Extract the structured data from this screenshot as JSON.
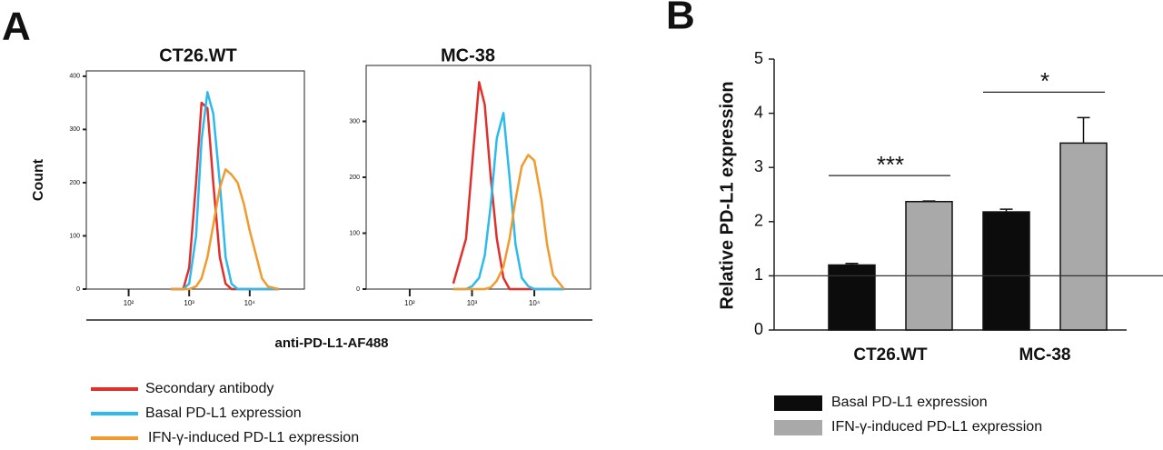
{
  "chart_data": [
    {
      "type": "line",
      "panel": "A",
      "title": "CT26.WT",
      "xlabel": "anti-PD-L1-AF488",
      "ylabel": "Count",
      "log_x": true,
      "xlim": [
        20,
        80000
      ],
      "ylim": [
        0,
        410
      ],
      "xticks": [
        {
          "value": 100,
          "label": "10²"
        },
        {
          "value": 1000,
          "label": "10³"
        },
        {
          "value": 10000,
          "label": "10⁴"
        }
      ],
      "yticks": [
        0,
        100,
        200,
        300,
        400
      ],
      "x": [
        500,
        800,
        1000,
        1300,
        1600,
        2000,
        2500,
        3200,
        4000,
        5000,
        6300,
        8000,
        10000,
        13000,
        16000,
        20000,
        30000
      ],
      "series": [
        {
          "name": "Secondary antibody",
          "color": "#e0302c",
          "values": [
            0,
            0,
            40,
            200,
            350,
            340,
            200,
            60,
            10,
            0,
            0,
            0,
            0,
            0,
            0,
            0,
            0
          ]
        },
        {
          "name": "Basal PD-L1 expression",
          "color": "#2bbbee",
          "values": [
            0,
            0,
            10,
            100,
            280,
            370,
            330,
            200,
            60,
            10,
            0,
            0,
            0,
            0,
            0,
            0,
            0
          ]
        },
        {
          "name": "IFN-γ-induced PD-L1 expression",
          "color": "#f39a2e",
          "values": [
            0,
            0,
            0,
            5,
            20,
            60,
            120,
            190,
            225,
            215,
            200,
            160,
            110,
            60,
            20,
            5,
            0
          ]
        }
      ]
    },
    {
      "type": "line",
      "title": "MC-38",
      "log_x": true,
      "xlim": [
        20,
        80000
      ],
      "ylim": [
        0,
        400
      ],
      "xticks": [
        {
          "value": 100,
          "label": "10²"
        },
        {
          "value": 1000,
          "label": "10³"
        },
        {
          "value": 10000,
          "label": "10⁴"
        }
      ],
      "yticks": [
        0,
        100,
        200,
        300
      ],
      "x": [
        500,
        800,
        1000,
        1300,
        1600,
        2000,
        2500,
        3200,
        4000,
        5000,
        6300,
        8000,
        10000,
        13000,
        16000,
        20000,
        30000
      ],
      "series": [
        {
          "color": "#e0302c",
          "values": [
            10,
            90,
            220,
            370,
            330,
            200,
            90,
            20,
            0,
            0,
            0,
            0,
            0,
            0,
            0,
            0,
            0
          ]
        },
        {
          "color": "#2bbbee",
          "values": [
            0,
            0,
            5,
            20,
            60,
            150,
            270,
            315,
            200,
            80,
            20,
            5,
            0,
            0,
            0,
            0,
            0
          ]
        },
        {
          "color": "#f39a2e",
          "values": [
            0,
            0,
            0,
            0,
            0,
            3,
            15,
            40,
            90,
            160,
            220,
            240,
            230,
            160,
            80,
            25,
            0
          ]
        }
      ]
    },
    {
      "type": "bar",
      "panel": "B",
      "ylabel": "Relative PD-L1 expression",
      "categories": [
        "CT26.WT",
        "MC-38"
      ],
      "ylim": [
        0,
        5
      ],
      "yticks": [
        0,
        1,
        2,
        3,
        4,
        5
      ],
      "refline": 1,
      "series": [
        {
          "name": "Basal PD-L1 expression",
          "color": "#0c0c0c",
          "values": [
            1.2,
            2.18
          ],
          "errors": [
            0.03,
            0.05
          ]
        },
        {
          "name": "IFN-γ-induced PD-L1 expression",
          "color": "#a9a9a9",
          "values": [
            2.37,
            3.45
          ],
          "errors": [
            0.01,
            0.47
          ]
        }
      ],
      "annotations": [
        "***",
        "*"
      ]
    }
  ]
}
